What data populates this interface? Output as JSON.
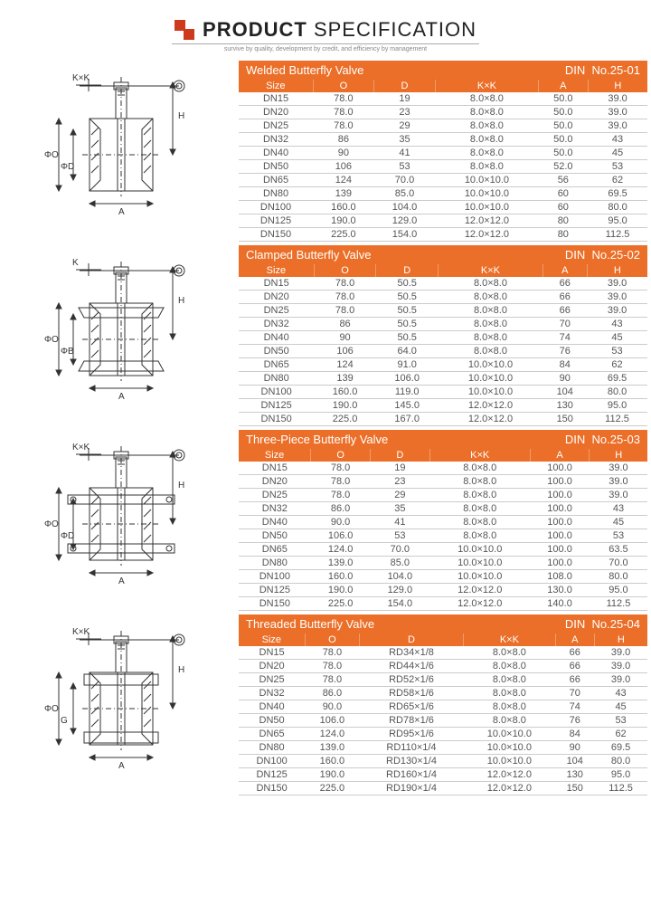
{
  "header": {
    "title_product": "PRODUCT",
    "title_spec": "SPECIFICATION",
    "subtitle": "survive by quality, development by credit, and efficiency by management"
  },
  "columns": [
    "Size",
    "O",
    "D",
    "K×K",
    "A",
    "H"
  ],
  "sections": [
    {
      "name": "Welded Butterfly Valve",
      "standard": "DIN",
      "number": "No.25-01",
      "diagram_labels": {
        "kk": "K×K",
        "od": "ΦD",
        "oo": "ΦO",
        "a": "A",
        "h": "H"
      },
      "rows": [
        [
          "DN15",
          "78.0",
          "19",
          "8.0×8.0",
          "50.0",
          "39.0"
        ],
        [
          "DN20",
          "78.0",
          "23",
          "8.0×8.0",
          "50.0",
          "39.0"
        ],
        [
          "DN25",
          "78.0",
          "29",
          "8.0×8.0",
          "50.0",
          "39.0"
        ],
        [
          "DN32",
          "86",
          "35",
          "8.0×8.0",
          "50.0",
          "43"
        ],
        [
          "DN40",
          "90",
          "41",
          "8.0×8.0",
          "50.0",
          "45"
        ],
        [
          "DN50",
          "106",
          "53",
          "8.0×8.0",
          "52.0",
          "53"
        ],
        [
          "DN65",
          "124",
          "70.0",
          "10.0×10.0",
          "56",
          "62"
        ],
        [
          "DN80",
          "139",
          "85.0",
          "10.0×10.0",
          "60",
          "69.5"
        ],
        [
          "DN100",
          "160.0",
          "104.0",
          "10.0×10.0",
          "60",
          "80.0"
        ],
        [
          "DN125",
          "190.0",
          "129.0",
          "12.0×12.0",
          "80",
          "95.0"
        ],
        [
          "DN150",
          "225.0",
          "154.0",
          "12.0×12.0",
          "80",
          "112.5"
        ]
      ]
    },
    {
      "name": "Clamped Butterfly Valve",
      "standard": "DIN",
      "number": "No.25-02",
      "diagram_labels": {
        "kk": "K",
        "od": "ΦB",
        "oo": "ΦO",
        "a": "A",
        "h": "H"
      },
      "rows": [
        [
          "DN15",
          "78.0",
          "50.5",
          "8.0×8.0",
          "66",
          "39.0"
        ],
        [
          "DN20",
          "78.0",
          "50.5",
          "8.0×8.0",
          "66",
          "39.0"
        ],
        [
          "DN25",
          "78.0",
          "50.5",
          "8.0×8.0",
          "66",
          "39.0"
        ],
        [
          "DN32",
          "86",
          "50.5",
          "8.0×8.0",
          "70",
          "43"
        ],
        [
          "DN40",
          "90",
          "50.5",
          "8.0×8.0",
          "74",
          "45"
        ],
        [
          "DN50",
          "106",
          "64.0",
          "8.0×8.0",
          "76",
          "53"
        ],
        [
          "DN65",
          "124",
          "91.0",
          "10.0×10.0",
          "84",
          "62"
        ],
        [
          "DN80",
          "139",
          "106.0",
          "10.0×10.0",
          "90",
          "69.5"
        ],
        [
          "DN100",
          "160.0",
          "119.0",
          "10.0×10.0",
          "104",
          "80.0"
        ],
        [
          "DN125",
          "190.0",
          "145.0",
          "12.0×12.0",
          "130",
          "95.0"
        ],
        [
          "DN150",
          "225.0",
          "167.0",
          "12.0×12.0",
          "150",
          "112.5"
        ]
      ]
    },
    {
      "name": "Three-Piece Butterfly Valve",
      "standard": "DIN",
      "number": "No.25-03",
      "diagram_labels": {
        "kk": "K×K",
        "od": "ΦD",
        "oo": "ΦO",
        "a": "A",
        "h": "H"
      },
      "rows": [
        [
          "DN15",
          "78.0",
          "19",
          "8.0×8.0",
          "100.0",
          "39.0"
        ],
        [
          "DN20",
          "78.0",
          "23",
          "8.0×8.0",
          "100.0",
          "39.0"
        ],
        [
          "DN25",
          "78.0",
          "29",
          "8.0×8.0",
          "100.0",
          "39.0"
        ],
        [
          "DN32",
          "86.0",
          "35",
          "8.0×8.0",
          "100.0",
          "43"
        ],
        [
          "DN40",
          "90.0",
          "41",
          "8.0×8.0",
          "100.0",
          "45"
        ],
        [
          "DN50",
          "106.0",
          "53",
          "8.0×8.0",
          "100.0",
          "53"
        ],
        [
          "DN65",
          "124.0",
          "70.0",
          "10.0×10.0",
          "100.0",
          "63.5"
        ],
        [
          "DN80",
          "139.0",
          "85.0",
          "10.0×10.0",
          "100.0",
          "70.0"
        ],
        [
          "DN100",
          "160.0",
          "104.0",
          "10.0×10.0",
          "108.0",
          "80.0"
        ],
        [
          "DN125",
          "190.0",
          "129.0",
          "12.0×12.0",
          "130.0",
          "95.0"
        ],
        [
          "DN150",
          "225.0",
          "154.0",
          "12.0×12.0",
          "140.0",
          "112.5"
        ]
      ]
    },
    {
      "name": "Threaded Butterfly Valve",
      "standard": "DIN",
      "number": "No.25-04",
      "diagram_labels": {
        "kk": "K×K",
        "od": "G",
        "oo": "ΦO",
        "a": "A",
        "h": "H"
      },
      "rows": [
        [
          "DN15",
          "78.0",
          "RD34×1/8",
          "8.0×8.0",
          "66",
          "39.0"
        ],
        [
          "DN20",
          "78.0",
          "RD44×1/6",
          "8.0×8.0",
          "66",
          "39.0"
        ],
        [
          "DN25",
          "78.0",
          "RD52×1/6",
          "8.0×8.0",
          "66",
          "39.0"
        ],
        [
          "DN32",
          "86.0",
          "RD58×1/6",
          "8.0×8.0",
          "70",
          "43"
        ],
        [
          "DN40",
          "90.0",
          "RD65×1/6",
          "8.0×8.0",
          "74",
          "45"
        ],
        [
          "DN50",
          "106.0",
          "RD78×1/6",
          "8.0×8.0",
          "76",
          "53"
        ],
        [
          "DN65",
          "124.0",
          "RD95×1/6",
          "10.0×10.0",
          "84",
          "62"
        ],
        [
          "DN80",
          "139.0",
          "RD110×1/4",
          "10.0×10.0",
          "90",
          "69.5"
        ],
        [
          "DN100",
          "160.0",
          "RD130×1/4",
          "10.0×10.0",
          "104",
          "80.0"
        ],
        [
          "DN125",
          "190.0",
          "RD160×1/4",
          "12.0×12.0",
          "130",
          "95.0"
        ],
        [
          "DN150",
          "225.0",
          "RD190×1/4",
          "12.0×12.0",
          "150",
          "112.5"
        ]
      ]
    }
  ]
}
